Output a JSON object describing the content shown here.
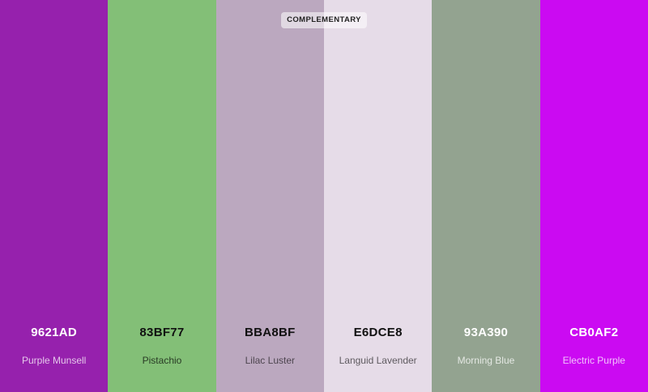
{
  "palette": {
    "badge": "COMPLEMENTARY",
    "swatches": [
      {
        "hex": "9621AD",
        "name": "Purple Munsell",
        "color": "#9621AD",
        "hex_color": "#ffffff",
        "name_color": "rgba(255,255,255,0.75)"
      },
      {
        "hex": "83BF77",
        "name": "Pistachio",
        "color": "#83BF77",
        "hex_color": "#111111",
        "name_color": "rgba(0,0,0,0.7)"
      },
      {
        "hex": "BBA8BF",
        "name": "Lilac Luster",
        "color": "#BBA8BF",
        "hex_color": "#111111",
        "name_color": "rgba(0,0,0,0.6)"
      },
      {
        "hex": "E6DCE8",
        "name": "Languid Lavender",
        "color": "#E6DCE8",
        "hex_color": "#111111",
        "name_color": "rgba(0,0,0,0.6)"
      },
      {
        "hex": "93A390",
        "name": "Morning Blue",
        "color": "#93A390",
        "hex_color": "#ffffff",
        "name_color": "rgba(255,255,255,0.75)"
      },
      {
        "hex": "CB0AF2",
        "name": "Electric Purple",
        "color": "#CB0AF2",
        "hex_color": "#ffffff",
        "name_color": "rgba(255,255,255,0.75)"
      }
    ]
  }
}
